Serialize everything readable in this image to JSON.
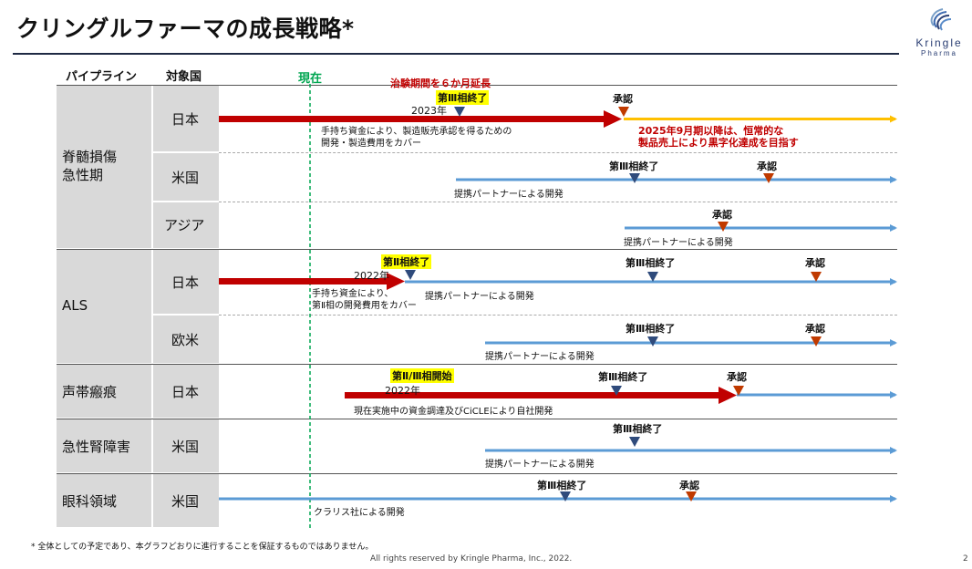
{
  "title": "クリングルファーマの成長戦略*",
  "logo": {
    "line1": "Kringle",
    "line2": "Pharma"
  },
  "headers": {
    "pipeline": "パイプライン",
    "country": "対象国",
    "now": "現在"
  },
  "pipelines": {
    "sci": "脊髄損傷\n急性期",
    "als": "ALS",
    "vocal": "声帯瘢痕",
    "aki": "急性腎障害",
    "eye": "眼科領域"
  },
  "countries": {
    "sci_jp": "日本",
    "sci_us": "米国",
    "sci_asia": "アジア",
    "als_jp": "日本",
    "als_euus": "欧米",
    "vocal_jp": "日本",
    "aki_us": "米国",
    "eye_us": "米国"
  },
  "milestones": {
    "phase3_end": "第Ⅲ相終了",
    "phase3_end_spaced": "第Ⅲ相終了",
    "phase2_end": "第Ⅱ相終了",
    "phase23_start": "第Ⅱ/Ⅲ相開始",
    "approval": "承認",
    "y2023": "2023年",
    "y2022": "2022年"
  },
  "notes": {
    "extension": "治験期間を６か月延長",
    "sci_jp_fund": "手持ち資金により、製造販売承認を得るための\n開発・製造費用をカバー",
    "sci_jp_profit": "2025年9月期以降は、恒常的な\n製品売上により黒字化達成を目指す",
    "partner": "提携パートナーによる開発",
    "als_jp_fund": "手持ち資金により、\n第Ⅱ相の開発費用をカバー",
    "vocal_fund": "現在実施中の資金調達及びCiCLEにより自社開発",
    "claris": "クラリス社による開発"
  },
  "footer": {
    "disclaimer": "*  全体としての予定であり、本グラフどおりに進行することを保証するものではありません。",
    "copyright": "All rights reserved by Kringle Pharma, Inc., 2022.",
    "page": "2"
  },
  "colors": {
    "dark_red": "#c00000",
    "blue_arrow": "#5b9bd5",
    "gold_arrow": "#ffc000",
    "milestone_blue": "#2f4b7c",
    "approval_red": "#c03a00",
    "now_green": "#00a550",
    "label_bg": "#d9d9d9",
    "navy": "#1f2a44"
  }
}
